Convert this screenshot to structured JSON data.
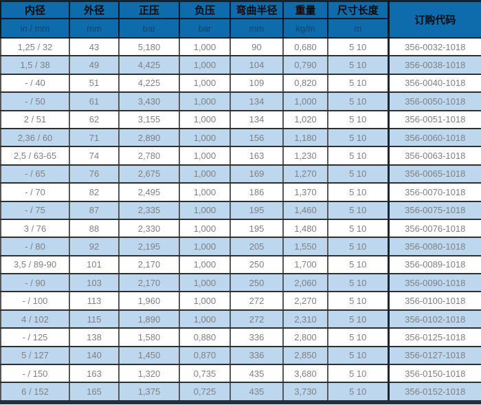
{
  "table": {
    "columns": [
      {
        "key": "inner-diameter",
        "label": "内径",
        "unit": "in / mm"
      },
      {
        "key": "outer-diameter",
        "label": "外径",
        "unit": "mm"
      },
      {
        "key": "positive-pressure",
        "label": "正压",
        "unit": "bar"
      },
      {
        "key": "negative-pressure",
        "label": "负压",
        "unit": "bar"
      },
      {
        "key": "bend-radius",
        "label": "弯曲半径",
        "unit": "mm"
      },
      {
        "key": "weight",
        "label": "重量",
        "unit": "kg/m"
      },
      {
        "key": "length",
        "label": "尺寸长度",
        "unit": "m"
      },
      {
        "key": "order-code",
        "label": "订购代码",
        "unit": ""
      }
    ],
    "rows": [
      [
        "1,25 / 32",
        "43",
        "5,180",
        "1,000",
        "90",
        "0,680",
        "5 10",
        "356-0032-1018"
      ],
      [
        "1,5 / 38",
        "49",
        "4,425",
        "1,000",
        "104",
        "0,790",
        "5 10",
        "356-0038-1018"
      ],
      [
        "- / 40",
        "51",
        "4,225",
        "1,000",
        "109",
        "0,820",
        "5 10",
        "356-0040-1018"
      ],
      [
        "- / 50",
        "61",
        "3,430",
        "1,000",
        "134",
        "1,000",
        "5 10",
        "356-0050-1018"
      ],
      [
        "2 / 51",
        "62",
        "3,155",
        "1,000",
        "134",
        "1,020",
        "5 10",
        "356-0051-1018"
      ],
      [
        "2,36 / 60",
        "71",
        "2,890",
        "1,000",
        "156",
        "1,180",
        "5 10",
        "356-0060-1018"
      ],
      [
        "2,5 / 63-65",
        "74",
        "2,780",
        "1,000",
        "163",
        "1,230",
        "5 10",
        "356-0063-1018"
      ],
      [
        "- / 65",
        "76",
        "2,675",
        "1,000",
        "169",
        "1,270",
        "5 10",
        "356-0065-1018"
      ],
      [
        "- / 70",
        "82",
        "2,495",
        "1,000",
        "186",
        "1,370",
        "5 10",
        "356-0070-1018"
      ],
      [
        "- / 75",
        "87",
        "2,335",
        "1,000",
        "195",
        "1,460",
        "5 10",
        "356-0075-1018"
      ],
      [
        "3 / 76",
        "88",
        "2,330",
        "1,000",
        "195",
        "1,480",
        "5 10",
        "356-0076-1018"
      ],
      [
        "- / 80",
        "92",
        "2,195",
        "1,000",
        "205",
        "1,550",
        "5 10",
        "356-0080-1018"
      ],
      [
        "3,5 / 89-90",
        "101",
        "2,170",
        "1,000",
        "250",
        "1,700",
        "5 10",
        "356-0089-1018"
      ],
      [
        "- / 90",
        "103",
        "2,170",
        "1,000",
        "250",
        "2,060",
        "5 10",
        "356-0090-1018"
      ],
      [
        "- / 100",
        "113",
        "1,960",
        "1,000",
        "272",
        "2,270",
        "5 10",
        "356-0100-1018"
      ],
      [
        "4 / 102",
        "115",
        "1,890",
        "1,000",
        "272",
        "2,310",
        "5 10",
        "356-0102-1018"
      ],
      [
        "- / 125",
        "138",
        "1,580",
        "0,880",
        "336",
        "2,800",
        "5 10",
        "356-0125-1018"
      ],
      [
        "5 / 127",
        "140",
        "1,450",
        "0,870",
        "336",
        "2,850",
        "5 10",
        "356-0127-1018"
      ],
      [
        "- / 150",
        "163",
        "1,320",
        "0,735",
        "435",
        "3,680",
        "5 10",
        "356-0150-1018"
      ],
      [
        "6 / 152",
        "165",
        "1,375",
        "0,725",
        "435",
        "3,730",
        "5 10",
        "356-0152-1018"
      ]
    ]
  },
  "colors": {
    "header_bg": "#0e6cad",
    "header_text": "#0a0a0a",
    "unit_text": "#16436a",
    "row_bg": "#ffffff",
    "row_alt_bg": "#bdd7ee",
    "data_text": "#808080",
    "frame_border": "#14222e"
  }
}
